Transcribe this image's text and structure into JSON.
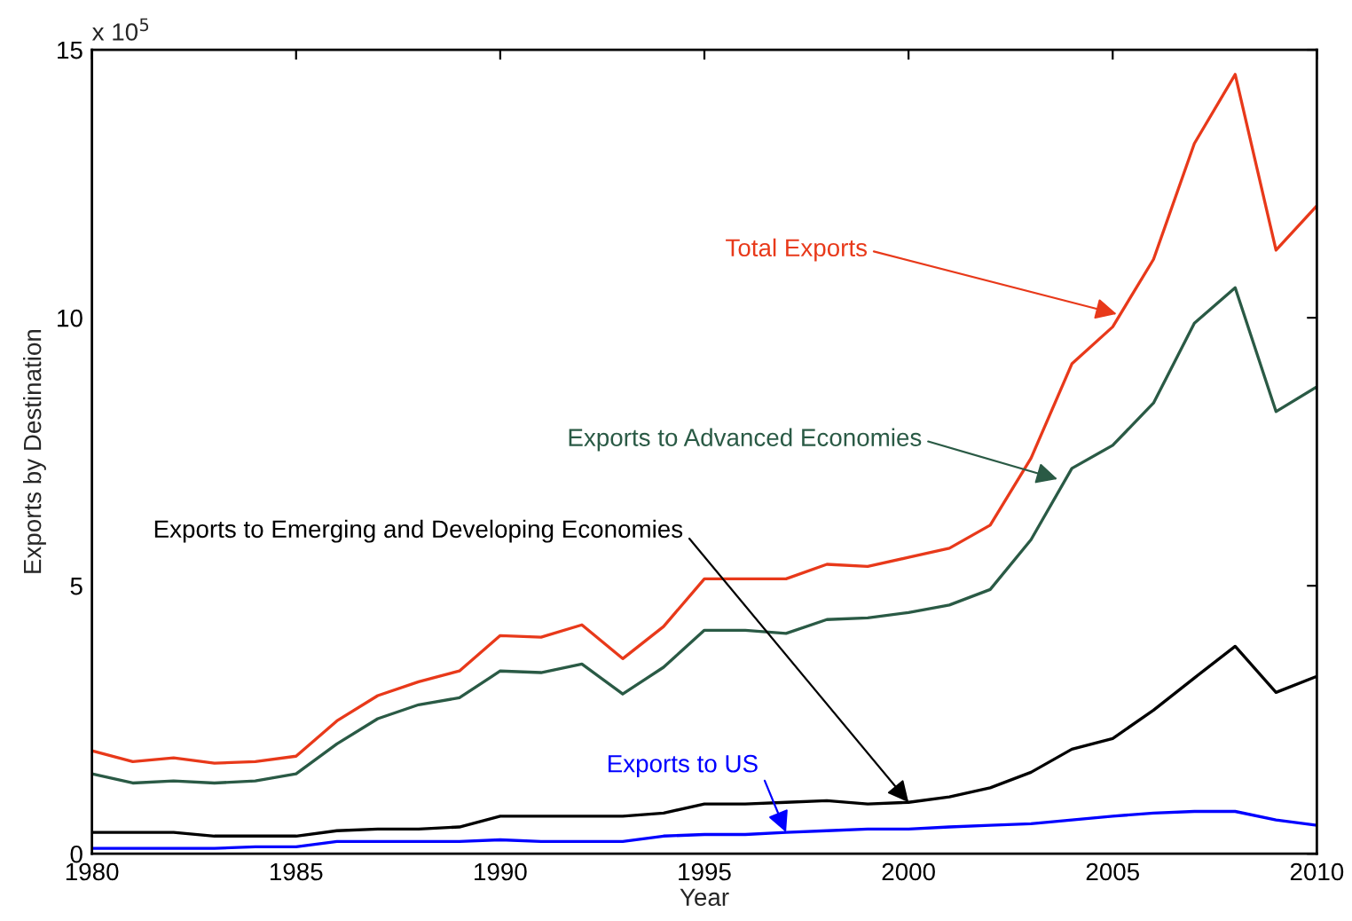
{
  "chart_data": {
    "type": "line",
    "xlabel": "Year",
    "ylabel": "Exports by Destination",
    "x": [
      1980,
      1981,
      1982,
      1983,
      1984,
      1985,
      1986,
      1987,
      1988,
      1989,
      1990,
      1991,
      1992,
      1993,
      1994,
      1995,
      1996,
      1997,
      1998,
      1999,
      2000,
      2001,
      2002,
      2003,
      2004,
      2005,
      2006,
      2007,
      2008,
      2009,
      2010
    ],
    "series": [
      {
        "color": "#e8391a",
        "values": [
          1.92,
          1.72,
          1.79,
          1.69,
          1.72,
          1.82,
          2.48,
          2.95,
          3.21,
          3.41,
          4.07,
          4.04,
          4.27,
          3.64,
          4.24,
          5.13,
          5.13,
          5.13,
          5.4,
          5.36,
          5.53,
          5.7,
          6.13,
          7.38,
          9.14,
          9.83,
          11.09,
          13.25,
          14.54,
          11.26,
          12.09
        ]
      },
      {
        "color": "#2a5a45",
        "values": [
          1.49,
          1.32,
          1.36,
          1.32,
          1.36,
          1.49,
          2.05,
          2.52,
          2.78,
          2.91,
          3.41,
          3.38,
          3.54,
          2.98,
          3.48,
          4.17,
          4.17,
          4.11,
          4.37,
          4.4,
          4.5,
          4.64,
          4.93,
          5.86,
          7.19,
          7.62,
          8.41,
          9.9,
          10.56,
          8.25,
          8.71
        ]
      },
      {
        "color": "#000000",
        "values": [
          0.4,
          0.4,
          0.4,
          0.33,
          0.33,
          0.33,
          0.43,
          0.46,
          0.46,
          0.5,
          0.7,
          0.7,
          0.7,
          0.7,
          0.76,
          0.93,
          0.93,
          0.96,
          0.99,
          0.93,
          0.96,
          1.06,
          1.23,
          1.52,
          1.95,
          2.15,
          2.68,
          3.28,
          3.87,
          3.01,
          3.31
        ]
      },
      {
        "color": "#0000ff",
        "values": [
          0.1,
          0.1,
          0.1,
          0.1,
          0.13,
          0.13,
          0.23,
          0.23,
          0.23,
          0.23,
          0.26,
          0.23,
          0.23,
          0.23,
          0.33,
          0.36,
          0.36,
          0.4,
          0.43,
          0.46,
          0.46,
          0.5,
          0.53,
          0.56,
          0.63,
          0.7,
          0.76,
          0.79,
          0.79,
          0.63,
          0.53
        ]
      }
    ],
    "annotations": [
      {
        "text": "Total Exports",
        "x": 2005.1,
        "y": 10.07
      },
      {
        "text": "Exports to Advanced Economies",
        "x": 2003.65,
        "y": 6.99
      },
      {
        "text": "Exports to Emerging and Developing Economies",
        "x": 2000,
        "y": 0.96
      },
      {
        "text": "Exports to US",
        "x": 1997,
        "y": 0.4
      },
      "x 10$^{5}$"
    ],
    "xlim": [
      1980,
      2010
    ],
    "xticks": [
      1980,
      1985,
      1990,
      1995,
      2000,
      2005,
      2010
    ],
    "ylim": [
      0,
      15
    ],
    "yticks": [
      0,
      5,
      10,
      15
    ],
    "grid": false,
    "legend": false,
    "marker": "none",
    "line_style": "solid"
  }
}
